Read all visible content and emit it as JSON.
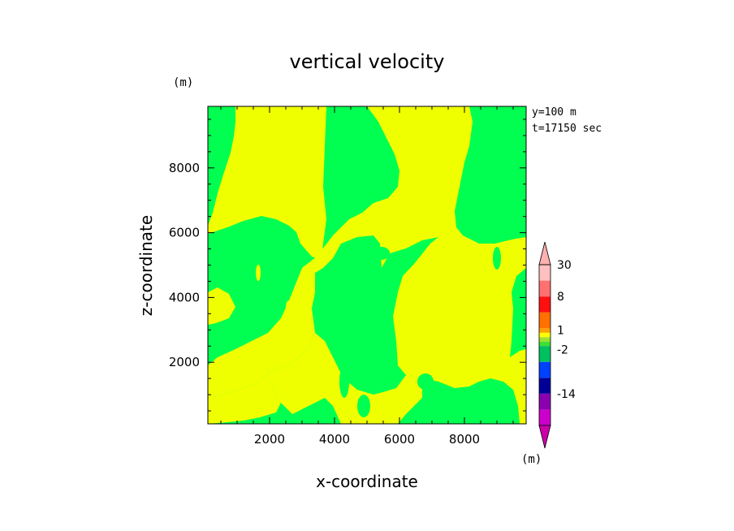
{
  "chart_data": {
    "type": "heatmap",
    "title": "vertical velocity",
    "xlabel": "x-coordinate",
    "ylabel": "z-coordinate",
    "x_unit": "(m)",
    "y_unit": "(m)",
    "info": [
      "y=100 m",
      "t=17150 sec"
    ],
    "xlim": [
      100,
      9900
    ],
    "ylim": [
      100,
      9900
    ],
    "x_ticks": [
      2000,
      4000,
      6000,
      8000
    ],
    "y_ticks": [
      2000,
      4000,
      6000,
      8000
    ],
    "grid": false,
    "legend_position": "right",
    "colors": {
      "yellow": "#f0ff00",
      "green": "#00ff50"
    },
    "colorbar": {
      "position": "right",
      "unit": "(m)",
      "labels": [
        "30",
        "8",
        "1",
        "-2",
        "-14"
      ],
      "label_values": [
        30,
        8,
        1,
        -2,
        -14
      ],
      "bins": [
        {
          "color": "#cc00aa",
          "level": -20
        },
        {
          "color": "#cc00cc",
          "level": -17
        },
        {
          "color": "#8a00b0",
          "level": -14
        },
        {
          "color": "#000099",
          "level": -8
        },
        {
          "color": "#0040ff",
          "level": -5
        },
        {
          "color": "#00c060",
          "level": -2
        },
        {
          "color": "#40e030",
          "level": -1
        },
        {
          "color": "#a0e030",
          "level": -0.5
        },
        {
          "color": "#ffff00",
          "level": 0
        },
        {
          "color": "#ffa000",
          "level": 1
        },
        {
          "color": "#ff7000",
          "level": 4
        },
        {
          "color": "#ff1010",
          "level": 8
        },
        {
          "color": "#ff7070",
          "level": 15
        },
        {
          "color": "#ffc0c0",
          "level": 22
        },
        {
          "color": "#ffb0b0",
          "level": 30
        }
      ]
    }
  }
}
